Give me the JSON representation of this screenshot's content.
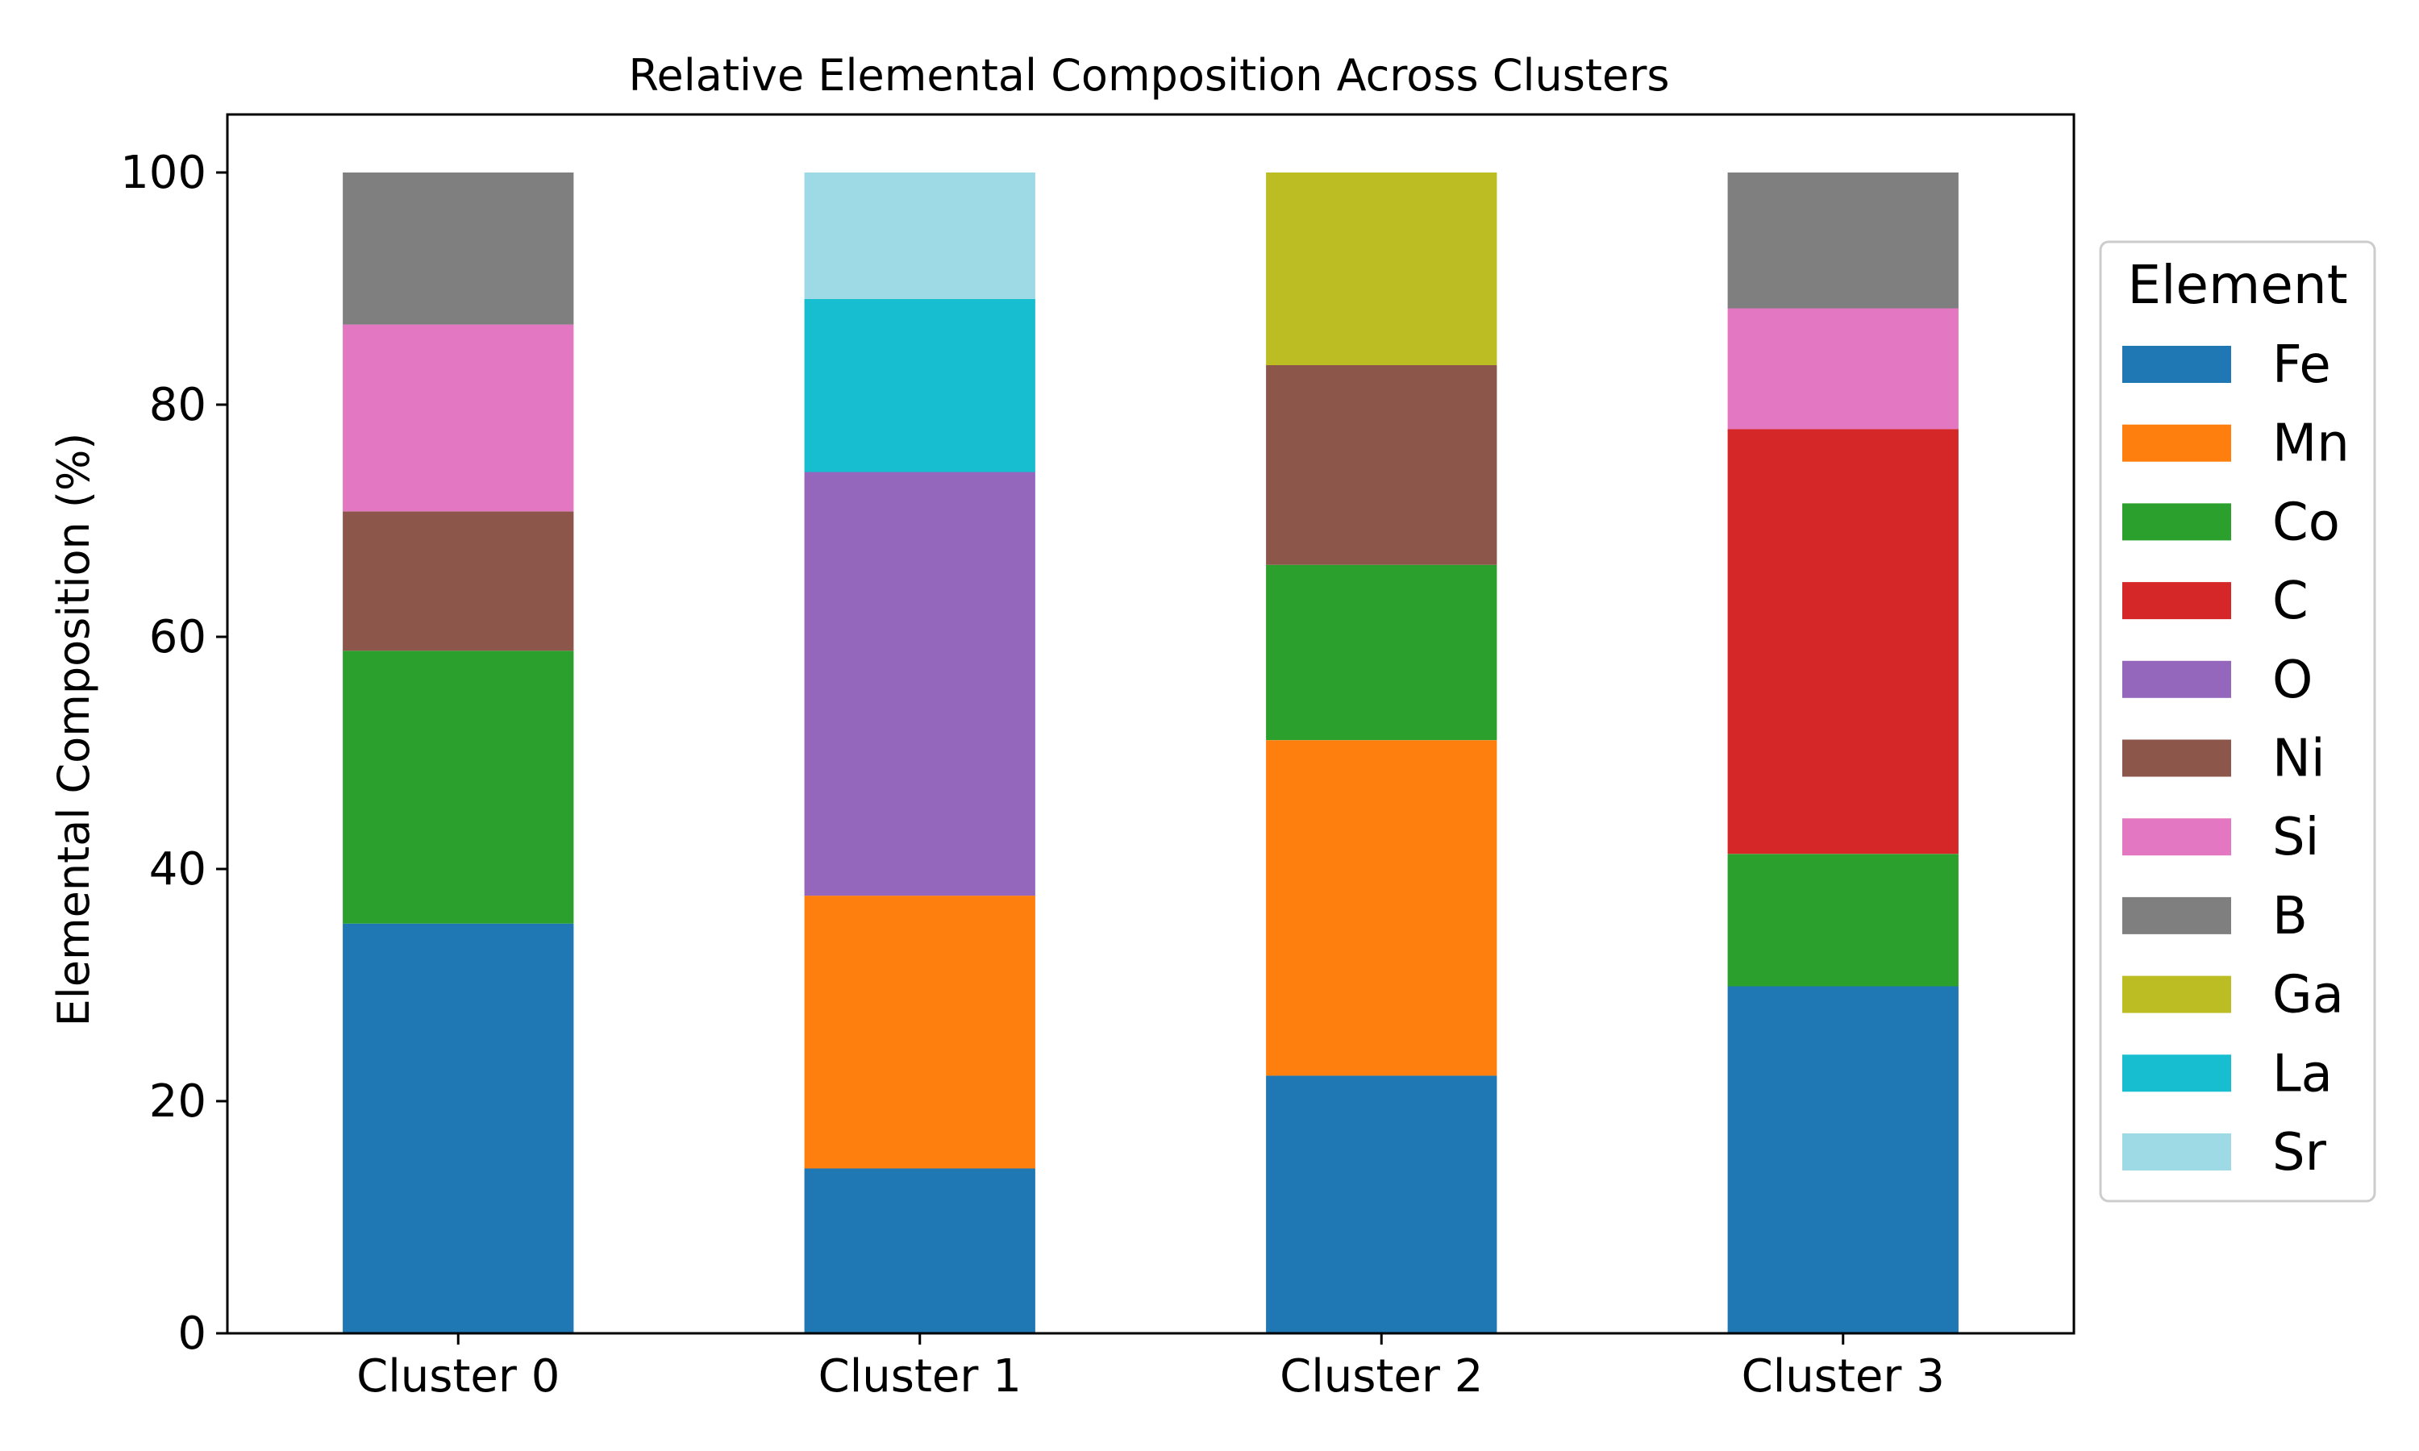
{
  "chart_data": {
    "type": "bar",
    "stacked": true,
    "title": "Relative Elemental Composition Across Clusters",
    "xlabel": "",
    "ylabel": "Elemental Composition (%)",
    "ylim": [
      0,
      105
    ],
    "yticks": [
      0,
      20,
      40,
      60,
      80,
      100
    ],
    "grid": false,
    "legend_title": "Element",
    "legend_position": "right",
    "categories": [
      "Cluster 0",
      "Cluster 1",
      "Cluster 2",
      "Cluster 3"
    ],
    "series": [
      {
        "name": "Fe",
        "color": "#1f77b4",
        "values": [
          35.3,
          14.2,
          22.2,
          29.9
        ]
      },
      {
        "name": "Mn",
        "color": "#ff7f0e",
        "values": [
          0,
          23.5,
          28.9,
          0
        ]
      },
      {
        "name": "Co",
        "color": "#2ca02c",
        "values": [
          23.5,
          0,
          15.1,
          11.4
        ]
      },
      {
        "name": "C",
        "color": "#d62728",
        "values": [
          0,
          0,
          0,
          36.6
        ]
      },
      {
        "name": "O",
        "color": "#9467bd",
        "values": [
          0,
          36.5,
          0,
          0
        ]
      },
      {
        "name": "Ni",
        "color": "#8c564b",
        "values": [
          12.0,
          0,
          17.2,
          0
        ]
      },
      {
        "name": "Si",
        "color": "#e377c2",
        "values": [
          16.1,
          0,
          0,
          10.4
        ]
      },
      {
        "name": "B",
        "color": "#7f7f7f",
        "values": [
          13.1,
          0,
          0,
          11.7
        ]
      },
      {
        "name": "Ga",
        "color": "#bcbd22",
        "values": [
          0,
          0,
          16.6,
          0
        ]
      },
      {
        "name": "La",
        "color": "#17becf",
        "values": [
          0,
          14.9,
          0,
          0
        ]
      },
      {
        "name": "Sr",
        "color": "#9edae5",
        "values": [
          0,
          10.9,
          0,
          0
        ]
      }
    ]
  }
}
